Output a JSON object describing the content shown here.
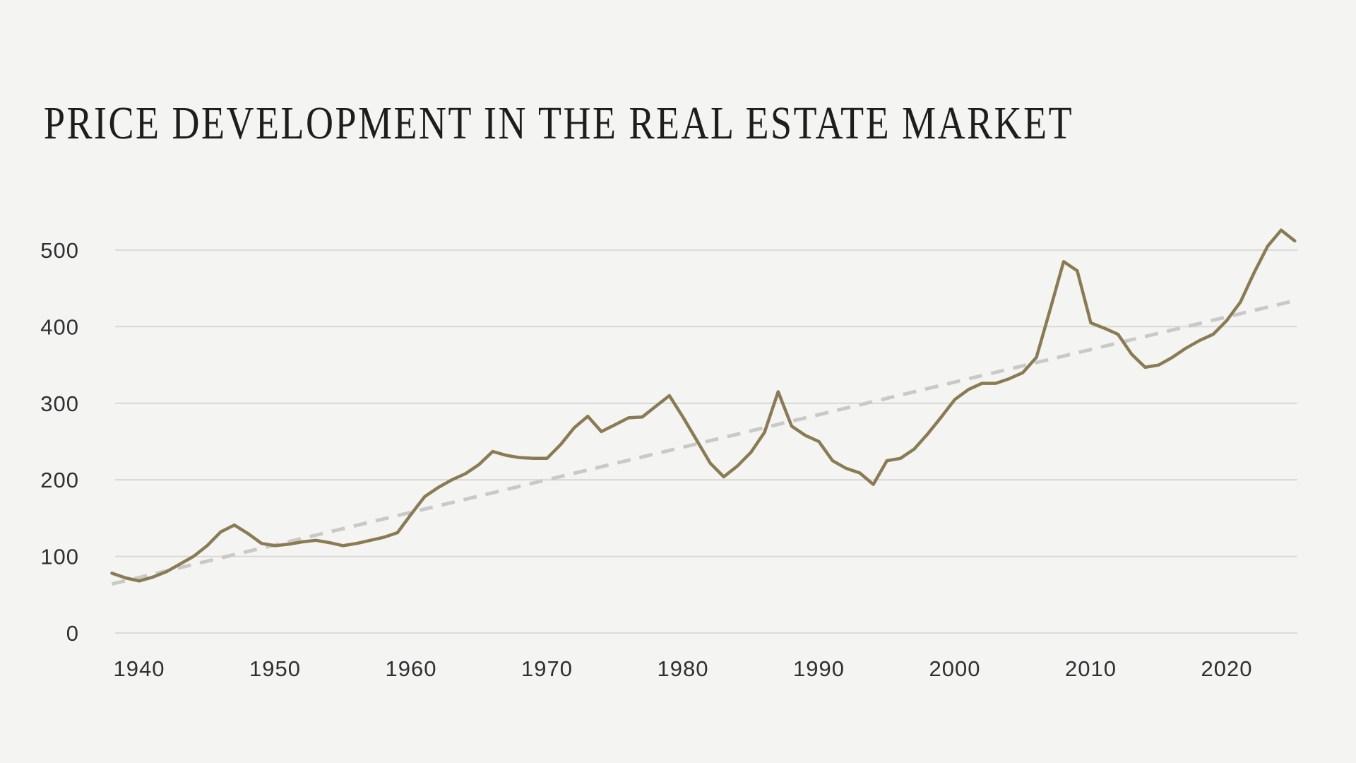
{
  "page": {
    "background": "#f4f4f3"
  },
  "header": {
    "title": "PRICE DEVELOPMENT IN THE REAL ESTATE MARKET",
    "title_color": "#1d1d1b"
  },
  "chart_data": {
    "type": "line",
    "title": "PRICE DEVELOPMENT IN THE REAL ESTATE MARKET",
    "x_start_year": 1938,
    "x_end_year": 2025,
    "series": [
      {
        "name": "price-index",
        "style": "solid",
        "color": "#8a7b54",
        "values": [
          78,
          72,
          68,
          73,
          80,
          90,
          100,
          114,
          132,
          141,
          130,
          117,
          114,
          116,
          119,
          121,
          118,
          114,
          117,
          121,
          125,
          131,
          155,
          178,
          190,
          200,
          208,
          220,
          237,
          232,
          229,
          228,
          228,
          246,
          268,
          283,
          263,
          272,
          281,
          282,
          296,
          310,
          282,
          252,
          222,
          204,
          218,
          236,
          262,
          315,
          270,
          258,
          250,
          225,
          215,
          209,
          194,
          225,
          228,
          240,
          260,
          282,
          305,
          318,
          326,
          326,
          332,
          340,
          360,
          422,
          485,
          473,
          405,
          398,
          390,
          364,
          347,
          350,
          360,
          372,
          382,
          390,
          408,
          432,
          470,
          505,
          526,
          512
        ]
      },
      {
        "name": "linear-trend",
        "style": "dashed",
        "color": "#c9c9c8",
        "x": [
          1938,
          2025
        ],
        "values": [
          64,
          434
        ]
      }
    ],
    "x_ticks": [
      1940,
      1950,
      1960,
      1970,
      1980,
      1990,
      2000,
      2010,
      2020
    ],
    "y_ticks": [
      0,
      100,
      200,
      300,
      400,
      500
    ],
    "xlim": [
      1938,
      2025
    ],
    "ylim": [
      0,
      560
    ],
    "xlabel": "",
    "ylabel": "",
    "grid": "horizontal",
    "legend": "none",
    "gridline_color": "#d7d6d4",
    "tick_label_color": "#2f2f2f"
  }
}
